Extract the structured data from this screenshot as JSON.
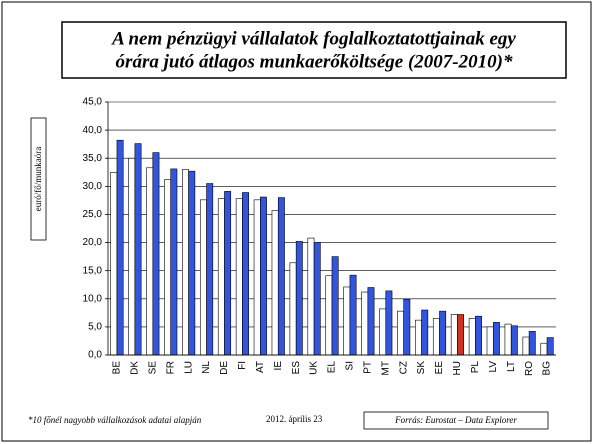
{
  "chart_data": {
    "type": "bar",
    "title_lines": [
      "A nem pénzügyi vállalatok foglalkoztatottjainak egy",
      "órára jutó átlagos munkaerőköltsége (2007-2010)*"
    ],
    "y_label": "euró/fő/munkaóra",
    "categories": [
      "BE",
      "DK",
      "SE",
      "FR",
      "LU",
      "NL",
      "DE",
      "FI",
      "AT",
      "IE",
      "ES",
      "UK",
      "EL",
      "SI",
      "PT",
      "MT",
      "CZ",
      "SK",
      "EE",
      "HU",
      "PL",
      "LV",
      "LT",
      "RO",
      "BG"
    ],
    "series": [
      {
        "color": "#ffffff",
        "values": [
          32.5,
          35,
          33.3,
          31.2,
          33,
          27.6,
          27.8,
          27.8,
          27.6,
          25.7,
          16.4,
          20.8,
          14.1,
          12.1,
          11.2,
          8.2,
          7.8,
          6.2,
          6.5,
          7.2,
          6.5,
          5,
          5.5,
          3.2,
          2.1
        ]
      },
      {
        "color": "#3355dd",
        "highlight": {
          "index": 19,
          "color": "#cc3322"
        },
        "values": [
          38.2,
          37.6,
          36,
          33.1,
          32.7,
          30.5,
          29.1,
          28.9,
          28.1,
          28,
          20.2,
          20,
          17.5,
          14.2,
          12,
          11.4,
          9.9,
          8,
          7.8,
          7.2,
          6.9,
          5.8,
          5.2,
          4.2,
          3.1
        ]
      }
    ],
    "ylim": [
      0,
      45
    ],
    "yticks": [
      {
        "value": 0,
        "label": "0,0"
      },
      {
        "value": 5,
        "label": "5,0"
      },
      {
        "value": 10,
        "label": "10,0"
      },
      {
        "value": 15,
        "label": "15,0"
      },
      {
        "value": 20,
        "label": "20,0"
      },
      {
        "value": 25,
        "label": "25,0"
      },
      {
        "value": 30,
        "label": "30,0"
      },
      {
        "value": 35,
        "label": "35,0"
      },
      {
        "value": 40,
        "label": "40,0"
      },
      {
        "value": 45,
        "label": "45,0"
      }
    ],
    "grid": true,
    "footnote": "*10 főnél nagyobb vállalkozások adatai alapján",
    "date": "2012. április 23",
    "source": "Forrás: Eurostat – Data Explorer"
  }
}
